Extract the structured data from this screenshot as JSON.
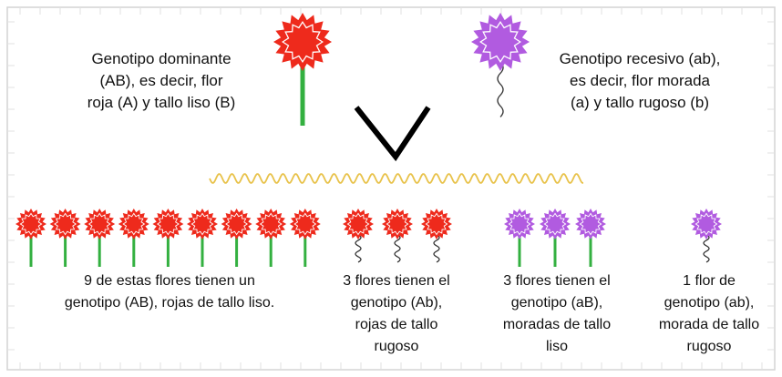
{
  "parents": {
    "dominant": {
      "lines": [
        "Genotipo dominante",
        "(AB), es decir, flor",
        "roja (A) y tallo liso (B)"
      ],
      "flower_color": "#ee2a1c",
      "stem": "liso"
    },
    "recessive": {
      "lines": [
        "Genotipo recesivo (ab),",
        "es decir, flor morada",
        "(a) y tallo rugoso (b)"
      ],
      "flower_color": "#b15be0",
      "stem": "rugoso"
    }
  },
  "cross_symbol": "chevron-icon",
  "offspring": [
    {
      "count": 9,
      "flower_color": "#ee2a1c",
      "stem": "liso",
      "lines": [
        "9 de estas flores tienen un",
        "genotipo (AB), rojas de tallo liso."
      ]
    },
    {
      "count": 3,
      "flower_color": "#ee2a1c",
      "stem": "rugoso",
      "lines": [
        "3 flores tienen el",
        "genotipo (Ab),",
        "rojas de tallo",
        "rugoso"
      ]
    },
    {
      "count": 3,
      "flower_color": "#b15be0",
      "stem": "liso",
      "lines": [
        "3 flores tienen el",
        "genotipo (aB),",
        "moradas de tallo",
        "liso"
      ]
    },
    {
      "count": 1,
      "flower_color": "#b15be0",
      "stem": "rugoso",
      "lines": [
        "1 flor de",
        "genotipo (ab),",
        "morada de tallo",
        "rugoso"
      ]
    }
  ],
  "colors": {
    "stem_green": "#33b040",
    "stem_curly": "#333333",
    "wave": "#e8c24a",
    "chevron": "#000000",
    "background": "#ffffff"
  }
}
